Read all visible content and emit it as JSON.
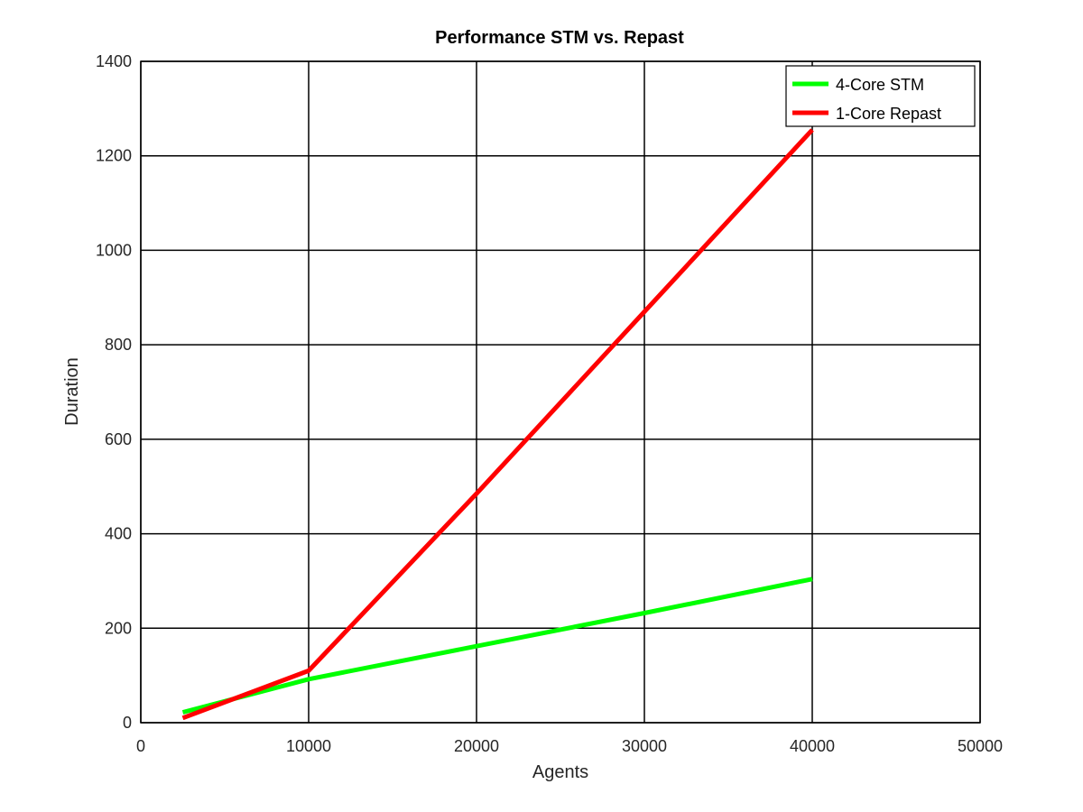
{
  "chart_data": {
    "type": "line",
    "title": "Performance STM vs. Repast",
    "xlabel": "Agents",
    "ylabel": "Duration",
    "xlim": [
      0,
      50000
    ],
    "ylim": [
      0,
      1400
    ],
    "xticks": [
      0,
      10000,
      20000,
      30000,
      40000,
      50000
    ],
    "yticks": [
      0,
      200,
      400,
      600,
      800,
      1000,
      1200,
      1400
    ],
    "grid": true,
    "legend_position": "top-right",
    "series": [
      {
        "name": "4-Core STM",
        "color": "#00ff00",
        "x": [
          2500,
          10000,
          20000,
          30000,
          40000
        ],
        "y": [
          22,
          92,
          162,
          232,
          304
        ]
      },
      {
        "name": "1-Core Repast",
        "color": "#ff0000",
        "x": [
          2500,
          10000,
          20000,
          30000,
          40000
        ],
        "y": [
          10,
          110,
          485,
          870,
          1255
        ]
      }
    ]
  }
}
